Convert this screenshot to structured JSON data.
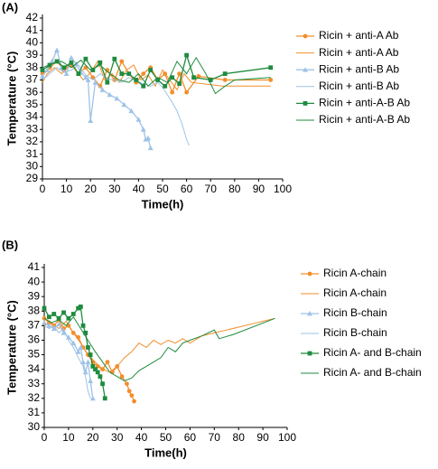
{
  "chart_data": [
    {
      "type": "line",
      "panel_label": "(A)",
      "xlabel": "Time(h)",
      "ylabel": "Temperature (°C)",
      "xlim": [
        0,
        100
      ],
      "xticks": [
        0,
        10,
        20,
        30,
        40,
        50,
        60,
        70,
        80,
        90,
        100
      ],
      "ylim": [
        29,
        42
      ],
      "yticks": [
        29,
        30,
        31,
        32,
        33,
        34,
        35,
        36,
        37,
        38,
        39,
        40,
        41,
        42
      ],
      "legend": "right",
      "series": [
        {
          "name": "Ricin + anti-A Ab",
          "color": "#f28e2b",
          "marker": "circle",
          "x": [
            0,
            3,
            6,
            9,
            12,
            15,
            18,
            21,
            24,
            27,
            30,
            33,
            36,
            39,
            42,
            45,
            48,
            51,
            54,
            57,
            60,
            65,
            76,
            95
          ],
          "values": [
            37.5,
            38,
            38.5,
            37.8,
            38.2,
            37.5,
            38,
            37.2,
            36.5,
            37.8,
            37,
            38.5,
            37.5,
            36.8,
            37.5,
            38,
            37,
            37.5,
            36,
            37.5,
            36,
            37.3,
            37,
            37
          ]
        },
        {
          "name": "Ricin + anti-A Ab",
          "color": "#f28e2b",
          "marker": "none",
          "x": [
            0,
            2,
            5,
            8,
            11,
            14,
            17,
            20,
            23,
            26,
            29,
            32,
            35,
            38,
            41,
            44,
            47,
            50,
            53,
            56,
            59,
            62,
            75,
            95
          ],
          "values": [
            36.8,
            37.5,
            38,
            37.5,
            38.3,
            37.8,
            37,
            37.6,
            38.5,
            37,
            37.5,
            36.8,
            37.8,
            38.2,
            37,
            37.4,
            36.5,
            37.8,
            37,
            36.2,
            37.5,
            36.8,
            36.5,
            36.5
          ]
        },
        {
          "name": "Ricin + anti-B Ab",
          "color": "#9ec3e6",
          "marker": "triangle",
          "x": [
            0,
            2,
            4,
            6,
            8,
            10,
            12,
            14,
            16,
            18,
            19,
            20,
            22,
            25,
            28,
            31,
            34,
            37,
            40,
            42,
            43,
            44,
            45
          ],
          "values": [
            37.3,
            37.8,
            38.5,
            39.4,
            38,
            37.5,
            38.8,
            38.3,
            37.6,
            37.2,
            37,
            33.7,
            36.8,
            36.2,
            35.8,
            35.5,
            35,
            34.5,
            33.8,
            33,
            32.2,
            32.3,
            31.5
          ]
        },
        {
          "name": "Ricin + anti-B Ab",
          "color": "#9ec3e6",
          "marker": "none",
          "x": [
            0,
            3,
            6,
            9,
            12,
            15,
            18,
            21,
            24,
            27,
            30,
            33,
            36,
            39,
            42,
            45,
            48,
            50,
            52,
            54,
            56,
            58,
            60,
            61
          ],
          "values": [
            37,
            37.5,
            38,
            37.6,
            37.8,
            38.2,
            37.4,
            37,
            37.5,
            37.1,
            37,
            36.8,
            37.2,
            36.9,
            36.7,
            36.5,
            36.8,
            36.4,
            35.8,
            35.2,
            34.5,
            33.5,
            32.2,
            31.7
          ]
        },
        {
          "name": "Ricin + anti-A-B Ab",
          "color": "#1f8b3f",
          "marker": "square",
          "x": [
            0,
            3,
            6,
            9,
            12,
            15,
            18,
            21,
            24,
            27,
            30,
            33,
            36,
            39,
            42,
            45,
            48,
            51,
            54,
            57,
            60,
            63,
            70,
            76,
            95
          ],
          "values": [
            37.8,
            38.2,
            38.5,
            38,
            38.4,
            37.5,
            38.7,
            37.8,
            38.4,
            36.8,
            38.7,
            37.5,
            37.5,
            37,
            36.5,
            37.8,
            37,
            36.5,
            37.2,
            36.7,
            39,
            37.2,
            37,
            37.5,
            38
          ]
        },
        {
          "name": "Ricin + anti-A-B Ab",
          "color": "#1f8b3f",
          "marker": "none",
          "x": [
            0,
            4,
            8,
            12,
            16,
            20,
            24,
            28,
            32,
            36,
            40,
            44,
            48,
            52,
            56,
            60,
            64,
            68,
            72,
            76,
            80,
            95
          ],
          "values": [
            38,
            38.3,
            38.5,
            38,
            38.6,
            37.8,
            38.2,
            37.5,
            37,
            36.8,
            37.5,
            36.5,
            37.2,
            36.8,
            38.5,
            37.5,
            38.8,
            37.5,
            35.9,
            36.5,
            37,
            37.2
          ]
        }
      ]
    },
    {
      "type": "line",
      "panel_label": "(B)",
      "xlabel": "Time(h)",
      "ylabel": "Temperature (°C)",
      "xlim": [
        0,
        100
      ],
      "xticks": [
        0,
        10,
        20,
        30,
        40,
        50,
        60,
        70,
        80,
        90,
        100
      ],
      "ylim": [
        30,
        41
      ],
      "yticks": [
        30,
        31,
        32,
        33,
        34,
        35,
        36,
        37,
        38,
        39,
        40,
        41
      ],
      "legend": "right",
      "series": [
        {
          "name": "Ricin A-chain",
          "color": "#f28e2b",
          "marker": "circle",
          "x": [
            0,
            2,
            4,
            6,
            8,
            10,
            12,
            14,
            16,
            18,
            20,
            22,
            24,
            26,
            28,
            30,
            32,
            34,
            35,
            36,
            37
          ],
          "values": [
            37.5,
            37.2,
            37,
            37.4,
            36.8,
            37,
            36.5,
            36.2,
            35.5,
            35,
            34.5,
            34.2,
            34,
            34.5,
            33.8,
            34.2,
            33.5,
            33,
            32.5,
            32.2,
            31.8
          ]
        },
        {
          "name": "Ricin A-chain",
          "color": "#f28e2b",
          "marker": "none",
          "x": [
            0,
            3,
            6,
            9,
            12,
            15,
            18,
            21,
            24,
            27,
            30,
            33,
            36,
            39,
            42,
            45,
            48,
            51,
            54,
            57,
            60,
            65,
            70,
            75,
            80,
            85,
            90,
            95
          ],
          "values": [
            37,
            37.2,
            36.8,
            37.3,
            36.5,
            35.8,
            35,
            34.5,
            34,
            33.8,
            34.2,
            34.8,
            35.2,
            35.8,
            35.5,
            36,
            35.7,
            36,
            35.8,
            36.1,
            35.8,
            36.3,
            36.5,
            36.7,
            36.9,
            37.1,
            37.3,
            37.5
          ]
        },
        {
          "name": "Ricin B-chain",
          "color": "#9ec3e6",
          "marker": "triangle",
          "x": [
            0,
            2,
            4,
            6,
            8,
            10,
            12,
            14,
            15,
            16,
            17,
            18,
            19,
            20
          ],
          "values": [
            37.2,
            37,
            36.8,
            37.1,
            36.5,
            36.2,
            35.8,
            35.2,
            35.5,
            34.5,
            33.8,
            34.5,
            33.2,
            32
          ]
        },
        {
          "name": "Ricin B-chain",
          "color": "#9ec3e6",
          "marker": "none",
          "x": [
            0,
            2,
            4,
            6,
            8,
            10,
            12,
            14,
            16,
            17,
            18,
            19
          ],
          "values": [
            37,
            36.8,
            37,
            36.5,
            36.8,
            36,
            35.5,
            34.8,
            34.2,
            33.5,
            32.5,
            32
          ]
        },
        {
          "name": "Ricin A- and B-chain",
          "color": "#1f8b3f",
          "marker": "square",
          "x": [
            0,
            2,
            4,
            6,
            8,
            10,
            12,
            14,
            15,
            16,
            17,
            18,
            19,
            20,
            21,
            22,
            23,
            24,
            25
          ],
          "values": [
            38.2,
            37.6,
            37.8,
            37.5,
            37.9,
            37.5,
            37.8,
            38.2,
            38.3,
            37,
            36.5,
            35.5,
            35,
            34.2,
            34,
            33.8,
            33.5,
            33,
            32
          ]
        },
        {
          "name": "Ricin A- and B-chain",
          "color": "#1f8b3f",
          "marker": "none",
          "x": [
            0,
            3,
            6,
            9,
            12,
            15,
            18,
            21,
            24,
            27,
            30,
            33,
            36,
            39,
            42,
            45,
            48,
            51,
            54,
            57,
            60,
            65,
            70,
            72,
            78,
            95
          ],
          "values": [
            37.5,
            37.2,
            37.4,
            37,
            37.6,
            36.8,
            36,
            35.2,
            34.5,
            33.8,
            33.5,
            33.2,
            33.4,
            33.9,
            34.2,
            34.5,
            34.8,
            35.5,
            35.2,
            35.8,
            36,
            36.3,
            36.7,
            36.1,
            36.4,
            37.5
          ]
        }
      ]
    }
  ]
}
